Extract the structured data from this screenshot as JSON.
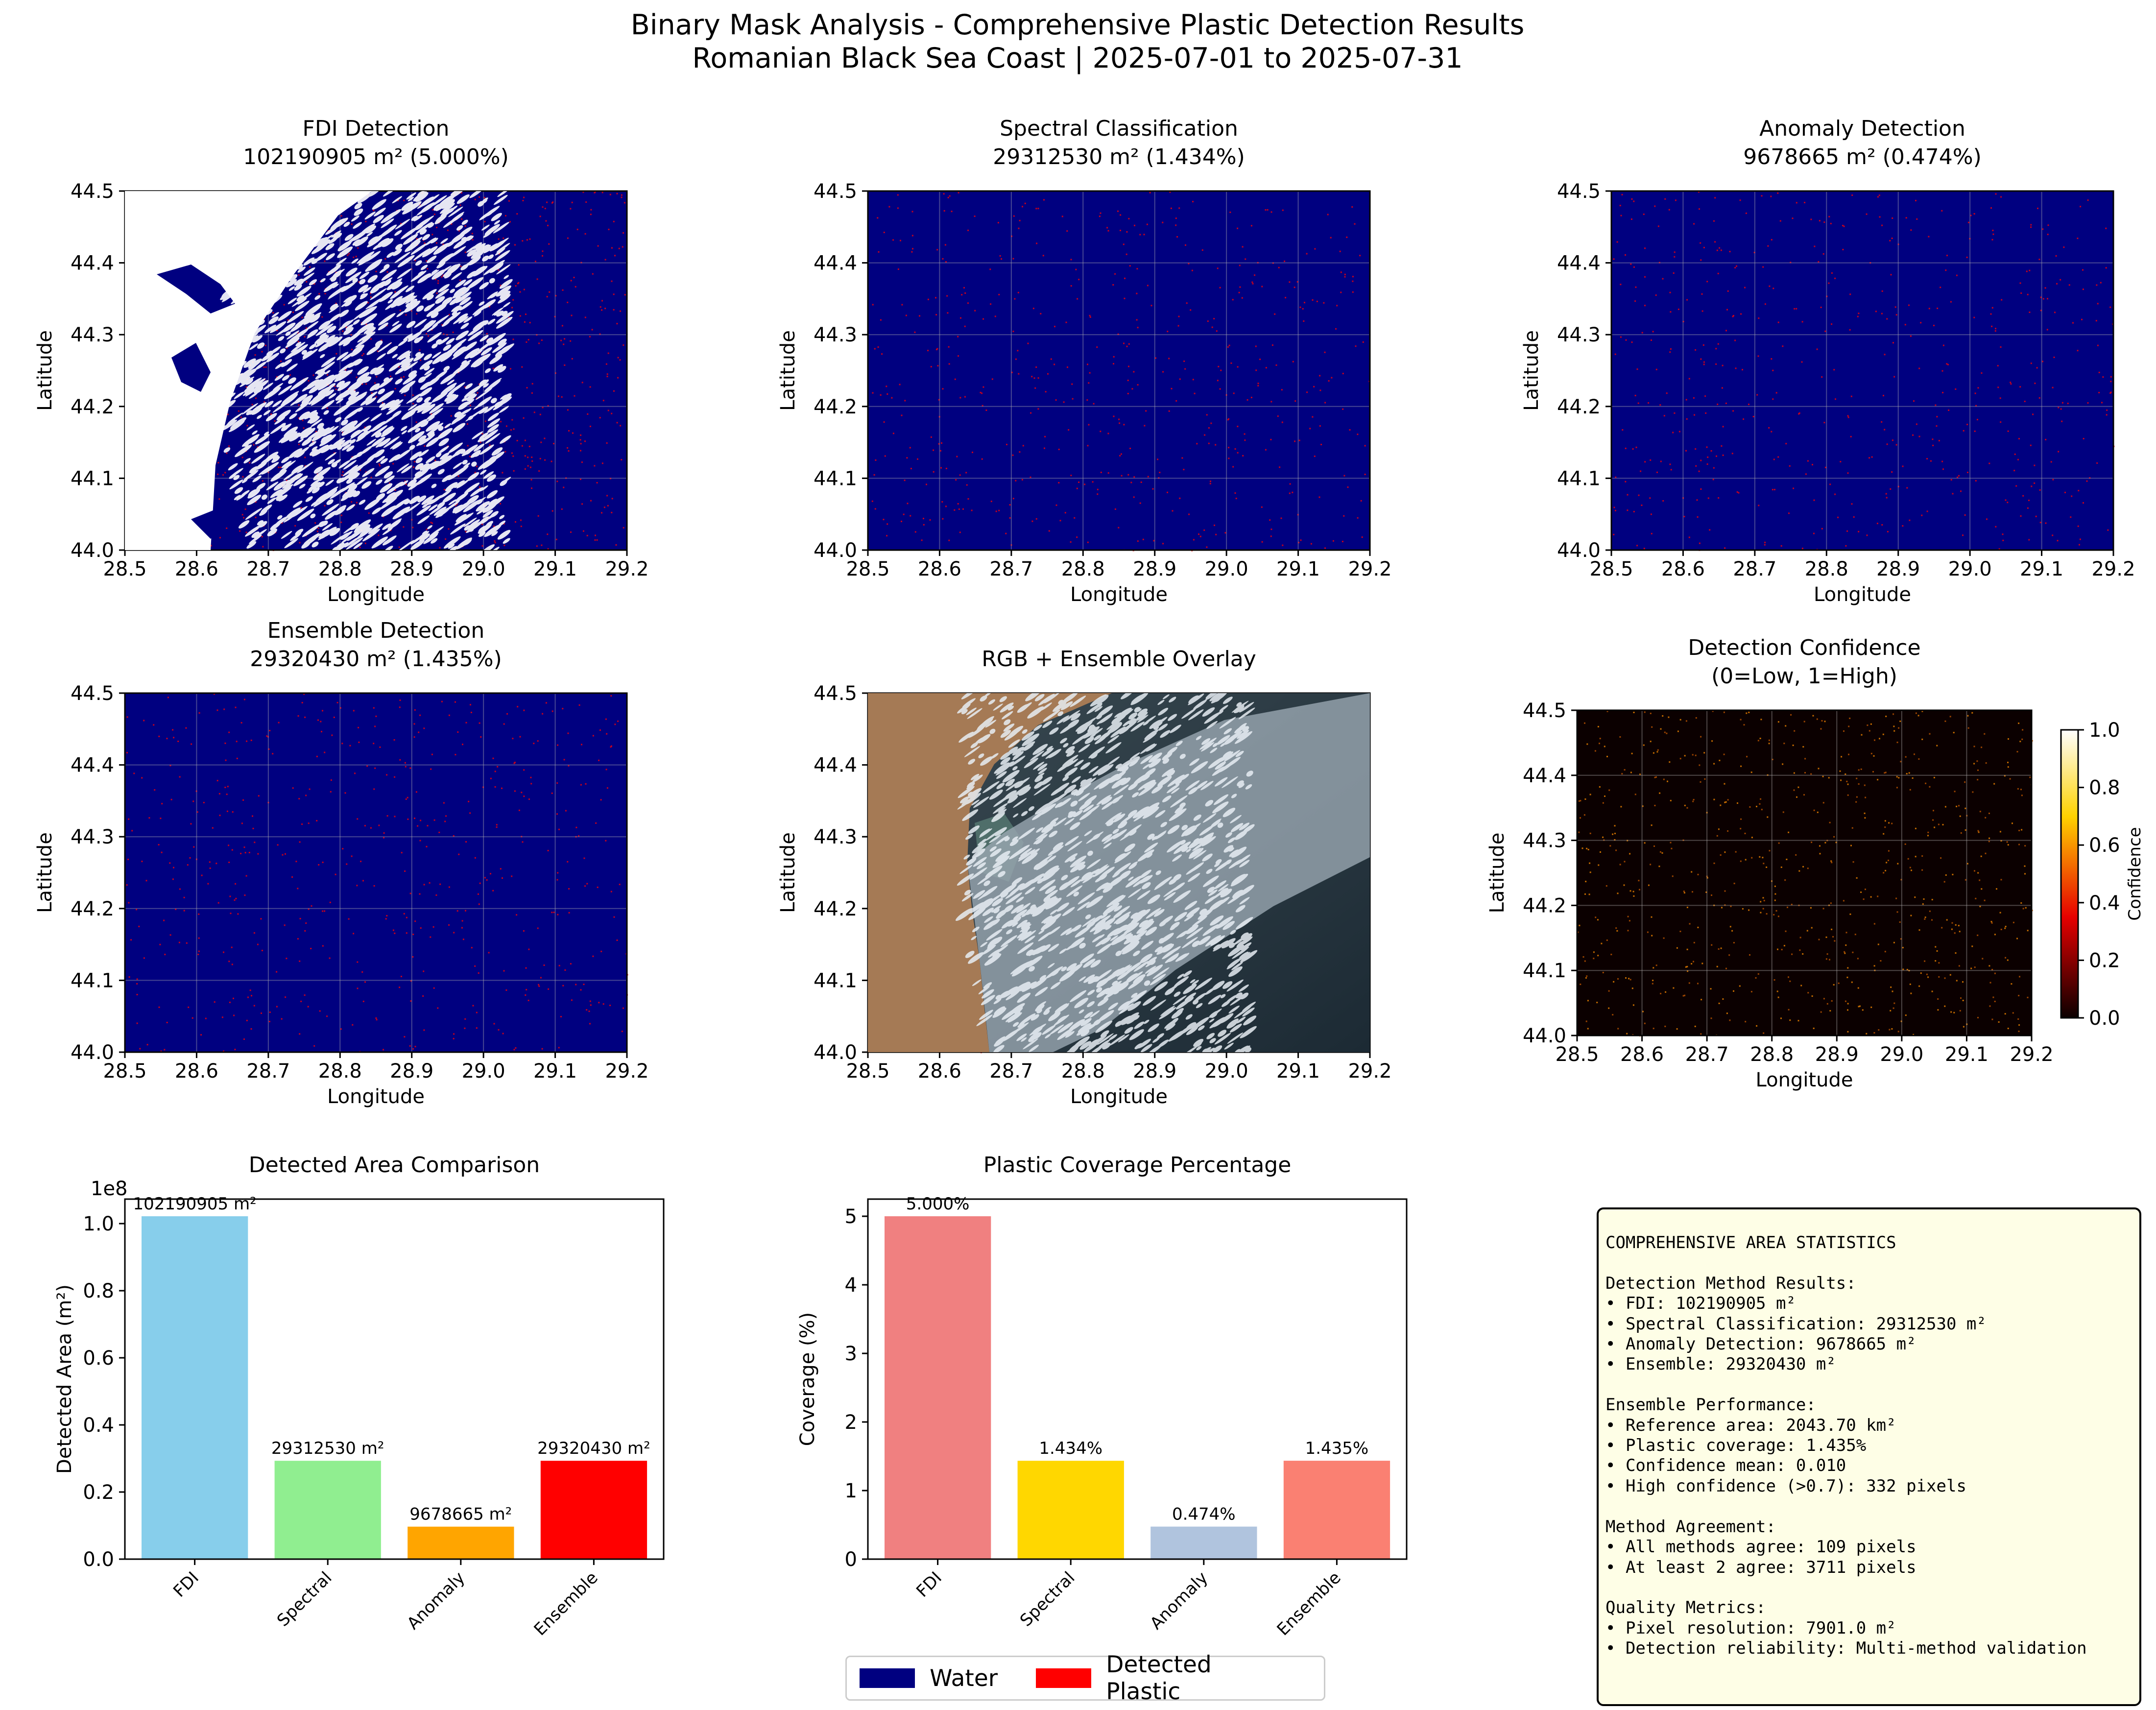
{
  "figure": {
    "title": "Binary Mask Analysis - Comprehensive Plastic Detection Results",
    "subtitle": "Romanian Black Sea Coast | 2025-07-01 to 2025-07-31"
  },
  "colors": {
    "water": "#000080",
    "plastic": "#ff0000",
    "fdi_bar": "#87ceeb",
    "spectral_bar": "#90ee90",
    "anomaly_bar": "#ffa500",
    "ensemble_bar": "#ff0000",
    "cov_fdi": "#f08080",
    "cov_spectral": "#ffd700",
    "cov_anomaly": "#b0c4de",
    "cov_ensemble": "#fa8072",
    "stats_bg": "#fefee6"
  },
  "chart_data": [
    {
      "type": "heatmap",
      "title": "FDI Detection",
      "subtitle": "102190905 m² (5.000%)",
      "xlabel": "Longitude",
      "ylabel": "Latitude",
      "xlim": [
        28.5,
        29.2
      ],
      "ylim": [
        44.0,
        44.5
      ],
      "xticks": [
        "28.5",
        "28.6",
        "28.7",
        "28.8",
        "28.9",
        "29.0",
        "29.1",
        "29.2"
      ],
      "yticks": [
        "44.0",
        "44.1",
        "44.2",
        "44.3",
        "44.4",
        "44.5"
      ],
      "grid": true
    },
    {
      "type": "heatmap",
      "title": "Spectral Classification",
      "subtitle": "29312530 m² (1.434%)",
      "xlabel": "Longitude",
      "ylabel": "Latitude",
      "xlim": [
        28.5,
        29.2
      ],
      "ylim": [
        44.0,
        44.5
      ],
      "xticks": [
        "28.5",
        "28.6",
        "28.7",
        "28.8",
        "28.9",
        "29.0",
        "29.1",
        "29.2"
      ],
      "yticks": [
        "44.0",
        "44.1",
        "44.2",
        "44.3",
        "44.4",
        "44.5"
      ],
      "grid": true
    },
    {
      "type": "heatmap",
      "title": "Anomaly Detection",
      "subtitle": "9678665 m² (0.474%)",
      "xlabel": "Longitude",
      "ylabel": "Latitude",
      "xlim": [
        28.5,
        29.2
      ],
      "ylim": [
        44.0,
        44.5
      ],
      "xticks": [
        "28.5",
        "28.6",
        "28.7",
        "28.8",
        "28.9",
        "29.0",
        "29.1",
        "29.2"
      ],
      "yticks": [
        "44.0",
        "44.1",
        "44.2",
        "44.3",
        "44.4",
        "44.5"
      ],
      "grid": true
    },
    {
      "type": "heatmap",
      "title": "Ensemble Detection",
      "subtitle": "29320430 m² (1.435%)",
      "xlabel": "Longitude",
      "ylabel": "Latitude",
      "xlim": [
        28.5,
        29.2
      ],
      "ylim": [
        44.0,
        44.5
      ],
      "xticks": [
        "28.5",
        "28.6",
        "28.7",
        "28.8",
        "28.9",
        "29.0",
        "29.1",
        "29.2"
      ],
      "yticks": [
        "44.0",
        "44.1",
        "44.2",
        "44.3",
        "44.4",
        "44.5"
      ],
      "grid": true
    },
    {
      "type": "heatmap",
      "title": "RGB + Ensemble Overlay",
      "subtitle": "",
      "xlabel": "Longitude",
      "ylabel": "Latitude",
      "xlim": [
        28.5,
        29.2
      ],
      "ylim": [
        44.0,
        44.5
      ],
      "xticks": [
        "28.5",
        "28.6",
        "28.7",
        "28.8",
        "28.9",
        "29.0",
        "29.1",
        "29.2"
      ],
      "yticks": [
        "44.0",
        "44.1",
        "44.2",
        "44.3",
        "44.4",
        "44.5"
      ],
      "grid": false
    },
    {
      "type": "heatmap",
      "title": "Detection Confidence",
      "subtitle": "(0=Low, 1=High)",
      "xlabel": "Longitude",
      "ylabel": "Latitude",
      "xlim": [
        28.5,
        29.2
      ],
      "ylim": [
        44.0,
        44.5
      ],
      "xticks": [
        "28.5",
        "28.6",
        "28.7",
        "28.8",
        "28.9",
        "29.0",
        "29.1",
        "29.2"
      ],
      "yticks": [
        "44.0",
        "44.1",
        "44.2",
        "44.3",
        "44.4",
        "44.5"
      ],
      "grid": true,
      "colorbar": {
        "label": "Confidence",
        "range": [
          0.0,
          1.0
        ],
        "ticks": [
          "0.0",
          "0.2",
          "0.4",
          "0.6",
          "0.8",
          "1.0"
        ]
      }
    },
    {
      "type": "bar",
      "title": "Detected Area Comparison",
      "xlabel": "",
      "ylabel": "Detected Area (m²)",
      "scale_label": "1e8",
      "categories": [
        "FDI",
        "Spectral",
        "Anomaly",
        "Ensemble"
      ],
      "values": [
        102190905,
        29312530,
        9678665,
        29320430
      ],
      "data_labels": [
        "102190905 m²",
        "29312530 m²",
        "9678665 m²",
        "29320430 m²"
      ],
      "ylim": [
        0,
        107300450
      ],
      "yticks": [
        "0.0",
        "0.2",
        "0.4",
        "0.6",
        "0.8",
        "1.0"
      ]
    },
    {
      "type": "bar",
      "title": "Plastic Coverage Percentage",
      "xlabel": "",
      "ylabel": "Coverage (%)",
      "categories": [
        "FDI",
        "Spectral",
        "Anomaly",
        "Ensemble"
      ],
      "values": [
        5.0,
        1.434,
        0.474,
        1.435
      ],
      "data_labels": [
        "5.000%",
        "1.434%",
        "0.474%",
        "1.435%"
      ],
      "ylim": [
        0,
        5.25
      ],
      "yticks": [
        "0",
        "1",
        "2",
        "3",
        "4",
        "5"
      ]
    }
  ],
  "legend": {
    "water": "Water",
    "plastic": "Detected Plastic"
  },
  "stats": {
    "text": "COMPREHENSIVE AREA STATISTICS\n\nDetection Method Results:\n• FDI: 102190905 m²\n• Spectral Classification: 29312530 m²\n• Anomaly Detection: 9678665 m²\n• Ensemble: 29320430 m²\n\nEnsemble Performance:\n• Reference area: 2043.70 km²\n• Plastic coverage: 1.435%\n• Confidence mean: 0.010\n• High confidence (>0.7): 332 pixels\n\nMethod Agreement:\n• All methods agree: 109 pixels\n• At least 2 agree: 3711 pixels\n\nQuality Metrics:\n• Pixel resolution: 7901.0 m²\n• Detection reliability: Multi-method validation"
  }
}
